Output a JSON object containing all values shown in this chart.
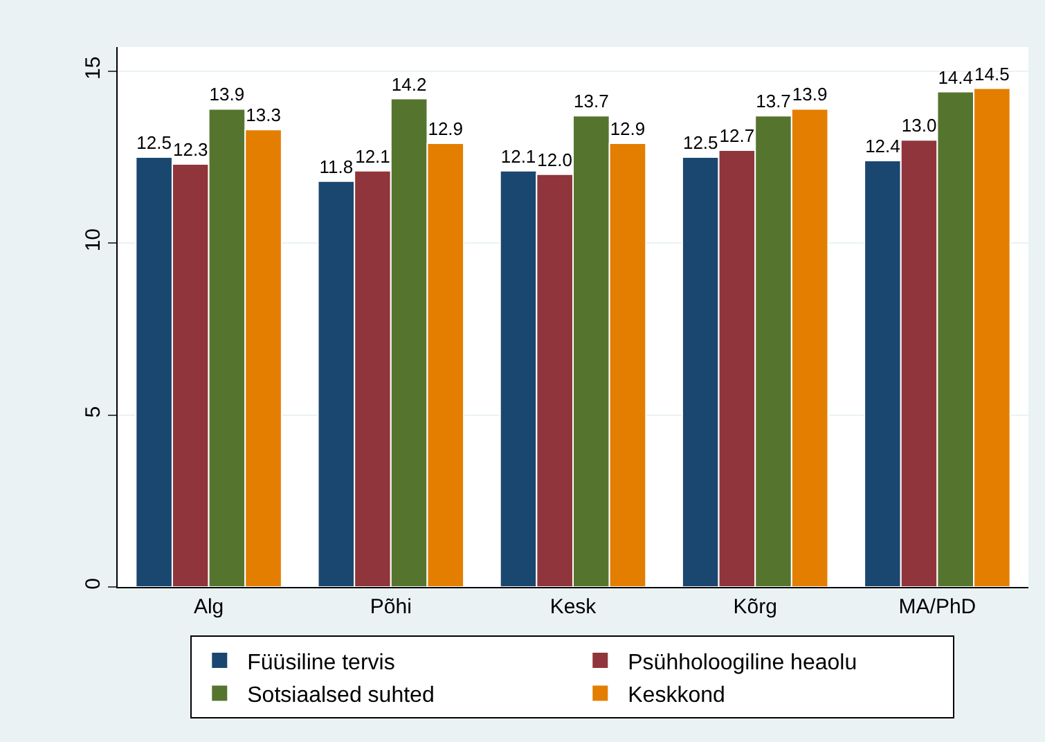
{
  "chart_data": {
    "type": "bar",
    "categories": [
      "Alg",
      "Põhi",
      "Kesk",
      "Kõrg",
      "MA/PhD"
    ],
    "series": [
      {
        "name": "Füüsiline tervis",
        "color": "#1a476f",
        "values": [
          12.5,
          11.8,
          12.1,
          12.5,
          12.4
        ],
        "value_labels": [
          "12.5",
          "11.8",
          "12.1",
          "12.5",
          "12.4"
        ]
      },
      {
        "name": "Psühholoogiline heaolu",
        "color": "#90353b",
        "values": [
          12.3,
          12.1,
          12.0,
          12.7,
          13.0
        ],
        "value_labels": [
          "12.3",
          "12.1",
          "12.0",
          "12.7",
          "13.0"
        ]
      },
      {
        "name": "Sotsiaalsed suhted",
        "color": "#55752f",
        "values": [
          13.9,
          14.2,
          13.7,
          13.7,
          14.4
        ],
        "value_labels": [
          "13.9",
          "14.2",
          "13.7",
          "13.7",
          "14.4"
        ]
      },
      {
        "name": "Keskkond",
        "color": "#e37e00",
        "values": [
          13.3,
          12.9,
          12.9,
          13.9,
          14.5
        ],
        "value_labels": [
          "13.3",
          "12.9",
          "12.9",
          "13.9",
          "14.5"
        ]
      }
    ],
    "ylim": [
      0,
      15.7
    ],
    "yticks": [
      0,
      5,
      10,
      15
    ],
    "grid": "y",
    "legend": "bottom"
  }
}
